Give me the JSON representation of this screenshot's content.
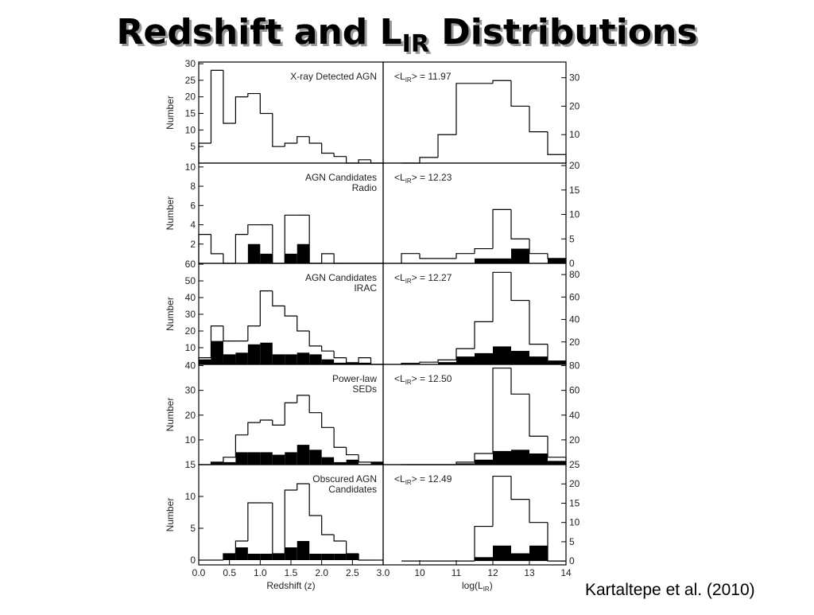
{
  "title": {
    "main": "Redshift and L",
    "sub": "IR",
    "rest": " Distributions"
  },
  "source": "Kartaltepe et al. (2010)",
  "chart_data": [
    {
      "type": "histogram",
      "bins": [
        0,
        0.2,
        0.4,
        0.6,
        0.8,
        1.0,
        1.2,
        1.4,
        1.6,
        1.8,
        2.0,
        2.2,
        2.4,
        2.6,
        2.8,
        3.0
      ],
      "values": [
        6,
        28,
        12,
        20,
        21,
        15,
        5,
        6,
        8,
        6,
        3,
        2,
        0,
        1,
        0
      ],
      "color": "#000000",
      "xlim": [
        0,
        3
      ],
      "ylim": [
        0,
        30.5
      ],
      "yticks": [
        5,
        10,
        15,
        20,
        25,
        30
      ],
      "ylabel": "Number",
      "annotation": [
        "X-ray Detected AGN"
      ]
    },
    {
      "type": "histogram",
      "bins": [
        9.5,
        10,
        10.5,
        11,
        11.5,
        12,
        12.5,
        13,
        13.5,
        14
      ],
      "values": [
        0,
        2,
        10,
        28,
        28,
        29,
        20,
        11,
        3
      ],
      "color": "#000000",
      "xlim": [
        9,
        14
      ],
      "ylim": [
        0,
        35.5
      ],
      "yticks": [
        10,
        20,
        30
      ],
      "mean_label": {
        "prefix": "<L",
        "sub": "IR",
        "suffix": "> = 11.97"
      }
    },
    {
      "type": "histogram",
      "bins": [
        0,
        0.2,
        0.4,
        0.6,
        0.8,
        1.0,
        1.2,
        1.4,
        1.6,
        1.8,
        2.0,
        2.2,
        2.4,
        2.6,
        2.8,
        3.0
      ],
      "values": [
        3,
        1,
        0,
        3,
        4,
        4,
        0,
        5,
        5,
        0,
        1,
        0,
        0,
        0,
        0
      ],
      "filled": [
        0,
        0,
        0,
        0,
        2,
        1,
        0,
        1,
        2,
        0,
        0,
        0,
        0,
        0,
        0
      ],
      "color": "#000000",
      "filled_color": "#000000",
      "xlim": [
        0,
        3
      ],
      "ylim": [
        0,
        10.4
      ],
      "yticks": [
        2,
        4,
        6,
        8,
        10
      ],
      "ylabel": "Number",
      "annotation": [
        "AGN Candidates",
        "Radio"
      ]
    },
    {
      "type": "histogram",
      "bins": [
        9.5,
        10,
        10.5,
        11,
        11.5,
        12,
        12.5,
        13,
        13.5,
        14
      ],
      "values": [
        2,
        1,
        1,
        2,
        3,
        11,
        5,
        2,
        1
      ],
      "filled": [
        0,
        0,
        0,
        0,
        1,
        1,
        3,
        0,
        1
      ],
      "color": "#000000",
      "filled_color": "#000000",
      "xlim": [
        9,
        14
      ],
      "ylim": [
        0,
        20.5
      ],
      "yticks": [
        0,
        5,
        10,
        15,
        20
      ],
      "mean_label": {
        "prefix": "<L",
        "sub": "IR",
        "suffix": "> = 12.23"
      }
    },
    {
      "type": "histogram",
      "bins": [
        0,
        0.2,
        0.4,
        0.6,
        0.8,
        1.0,
        1.2,
        1.4,
        1.6,
        1.8,
        2.0,
        2.2,
        2.4,
        2.6,
        2.8,
        3.0
      ],
      "values": [
        4,
        23,
        14,
        14,
        23,
        44,
        35,
        29,
        20,
        11,
        8,
        4,
        1,
        4,
        0
      ],
      "filled": [
        3,
        14,
        6,
        7,
        12,
        13,
        6,
        6,
        7,
        6,
        3,
        1,
        1,
        1,
        0
      ],
      "color": "#000000",
      "filled_color": "#000000",
      "xlim": [
        0,
        3
      ],
      "ylim": [
        0,
        60.5
      ],
      "yticks": [
        10,
        20,
        30,
        40,
        50,
        60
      ],
      "ylabel": "Number",
      "annotation": [
        "AGN Candidates",
        "IRAC"
      ]
    },
    {
      "type": "histogram",
      "bins": [
        9.5,
        10,
        10.5,
        11,
        11.5,
        12,
        12.5,
        13,
        13.5,
        14
      ],
      "values": [
        1,
        2,
        4,
        14,
        38,
        82,
        57,
        18,
        3
      ],
      "filled": [
        0,
        0,
        2,
        7,
        10,
        16,
        12,
        7,
        3
      ],
      "color": "#000000",
      "filled_color": "#000000",
      "xlim": [
        9,
        14
      ],
      "ylim": [
        0,
        90
      ],
      "yticks": [
        20,
        40,
        60,
        80
      ],
      "mean_label": {
        "prefix": "<L",
        "sub": "IR",
        "suffix": "> = 12.27"
      }
    },
    {
      "type": "histogram",
      "bins": [
        0,
        0.2,
        0.4,
        0.6,
        0.8,
        1.0,
        1.2,
        1.4,
        1.6,
        1.8,
        2.0,
        2.2,
        2.4,
        2.6,
        2.8,
        3.0
      ],
      "values": [
        0,
        1,
        3,
        12,
        17,
        18,
        16,
        25,
        28,
        21,
        15,
        7,
        4,
        1,
        1
      ],
      "filled": [
        0,
        1,
        1,
        5,
        5,
        5,
        4,
        5,
        8,
        6,
        3,
        1,
        2,
        0,
        1
      ],
      "color": "#000000",
      "filled_color": "#000000",
      "xlim": [
        0,
        3
      ],
      "ylim": [
        0,
        40.5
      ],
      "yticks": [
        10,
        20,
        30,
        40
      ],
      "ylabel": "Number",
      "annotation": [
        "Power-law",
        "SEDs"
      ]
    },
    {
      "type": "histogram",
      "bins": [
        9.5,
        10,
        10.5,
        11,
        11.5,
        12,
        12.5,
        13,
        13.5,
        14
      ],
      "values": [
        0,
        0,
        0,
        2,
        9,
        78,
        57,
        23,
        6
      ],
      "filled": [
        0,
        0,
        0,
        1,
        4,
        11,
        12,
        9,
        3
      ],
      "color": "#000000",
      "filled_color": "#000000",
      "xlim": [
        9,
        14
      ],
      "ylim": [
        0,
        81
      ],
      "yticks": [
        20,
        40,
        60,
        80
      ],
      "mean_label": {
        "prefix": "<L",
        "sub": "IR",
        "suffix": "> = 12.50"
      }
    },
    {
      "type": "histogram",
      "bins": [
        0,
        0.2,
        0.4,
        0.6,
        0.8,
        1.0,
        1.2,
        1.4,
        1.6,
        1.8,
        2.0,
        2.2,
        2.4,
        2.6,
        2.8,
        3.0
      ],
      "values": [
        0,
        0,
        1,
        3,
        9,
        9,
        1,
        11,
        12,
        7,
        4,
        3,
        1,
        0,
        0
      ],
      "filled": [
        0,
        0,
        1,
        2,
        1,
        1,
        1,
        2,
        3,
        1,
        1,
        1,
        1,
        0,
        0
      ],
      "color": "#000000",
      "filled_color": "#000000",
      "xlim": [
        0,
        3
      ],
      "ylim": [
        -0.75,
        15
      ],
      "yticks": [
        0,
        5,
        10,
        15
      ],
      "xticks": [
        {
          "value": 0,
          "label": "0.0"
        },
        {
          "value": 0.5,
          "label": "0.5"
        },
        {
          "value": 1,
          "label": "1.0"
        },
        {
          "value": 1.5,
          "label": "1.5"
        },
        {
          "value": 2,
          "label": "2.0"
        },
        {
          "value": 2.5,
          "label": "2.5"
        },
        {
          "value": 3,
          "label": "3.0"
        }
      ],
      "xlabel": "Redshift (z)",
      "ylabel": "Number",
      "annotation": [
        "Obscured AGN",
        "Candidates"
      ]
    },
    {
      "type": "histogram",
      "bins": [
        9.5,
        10,
        10.5,
        11,
        11.5,
        12,
        12.5,
        13,
        13.5,
        14
      ],
      "values": [
        0,
        0,
        0,
        0,
        9,
        22,
        16,
        10,
        0
      ],
      "filled": [
        0,
        0,
        0,
        0,
        1,
        4,
        2,
        4,
        0
      ],
      "color": "#000000",
      "filled_color": "#000000",
      "xlim": [
        9,
        14
      ],
      "ylim": [
        -1,
        25
      ],
      "yticks": [
        0,
        5,
        10,
        15,
        20,
        25
      ],
      "xticks": [
        10,
        11,
        12,
        13,
        14
      ],
      "xlabel_parts": {
        "prefix": "log(L",
        "sub": "IR",
        "suffix": ")"
      },
      "mean_label": {
        "prefix": "<L",
        "sub": "IR",
        "suffix": "> = 12.49"
      }
    }
  ]
}
